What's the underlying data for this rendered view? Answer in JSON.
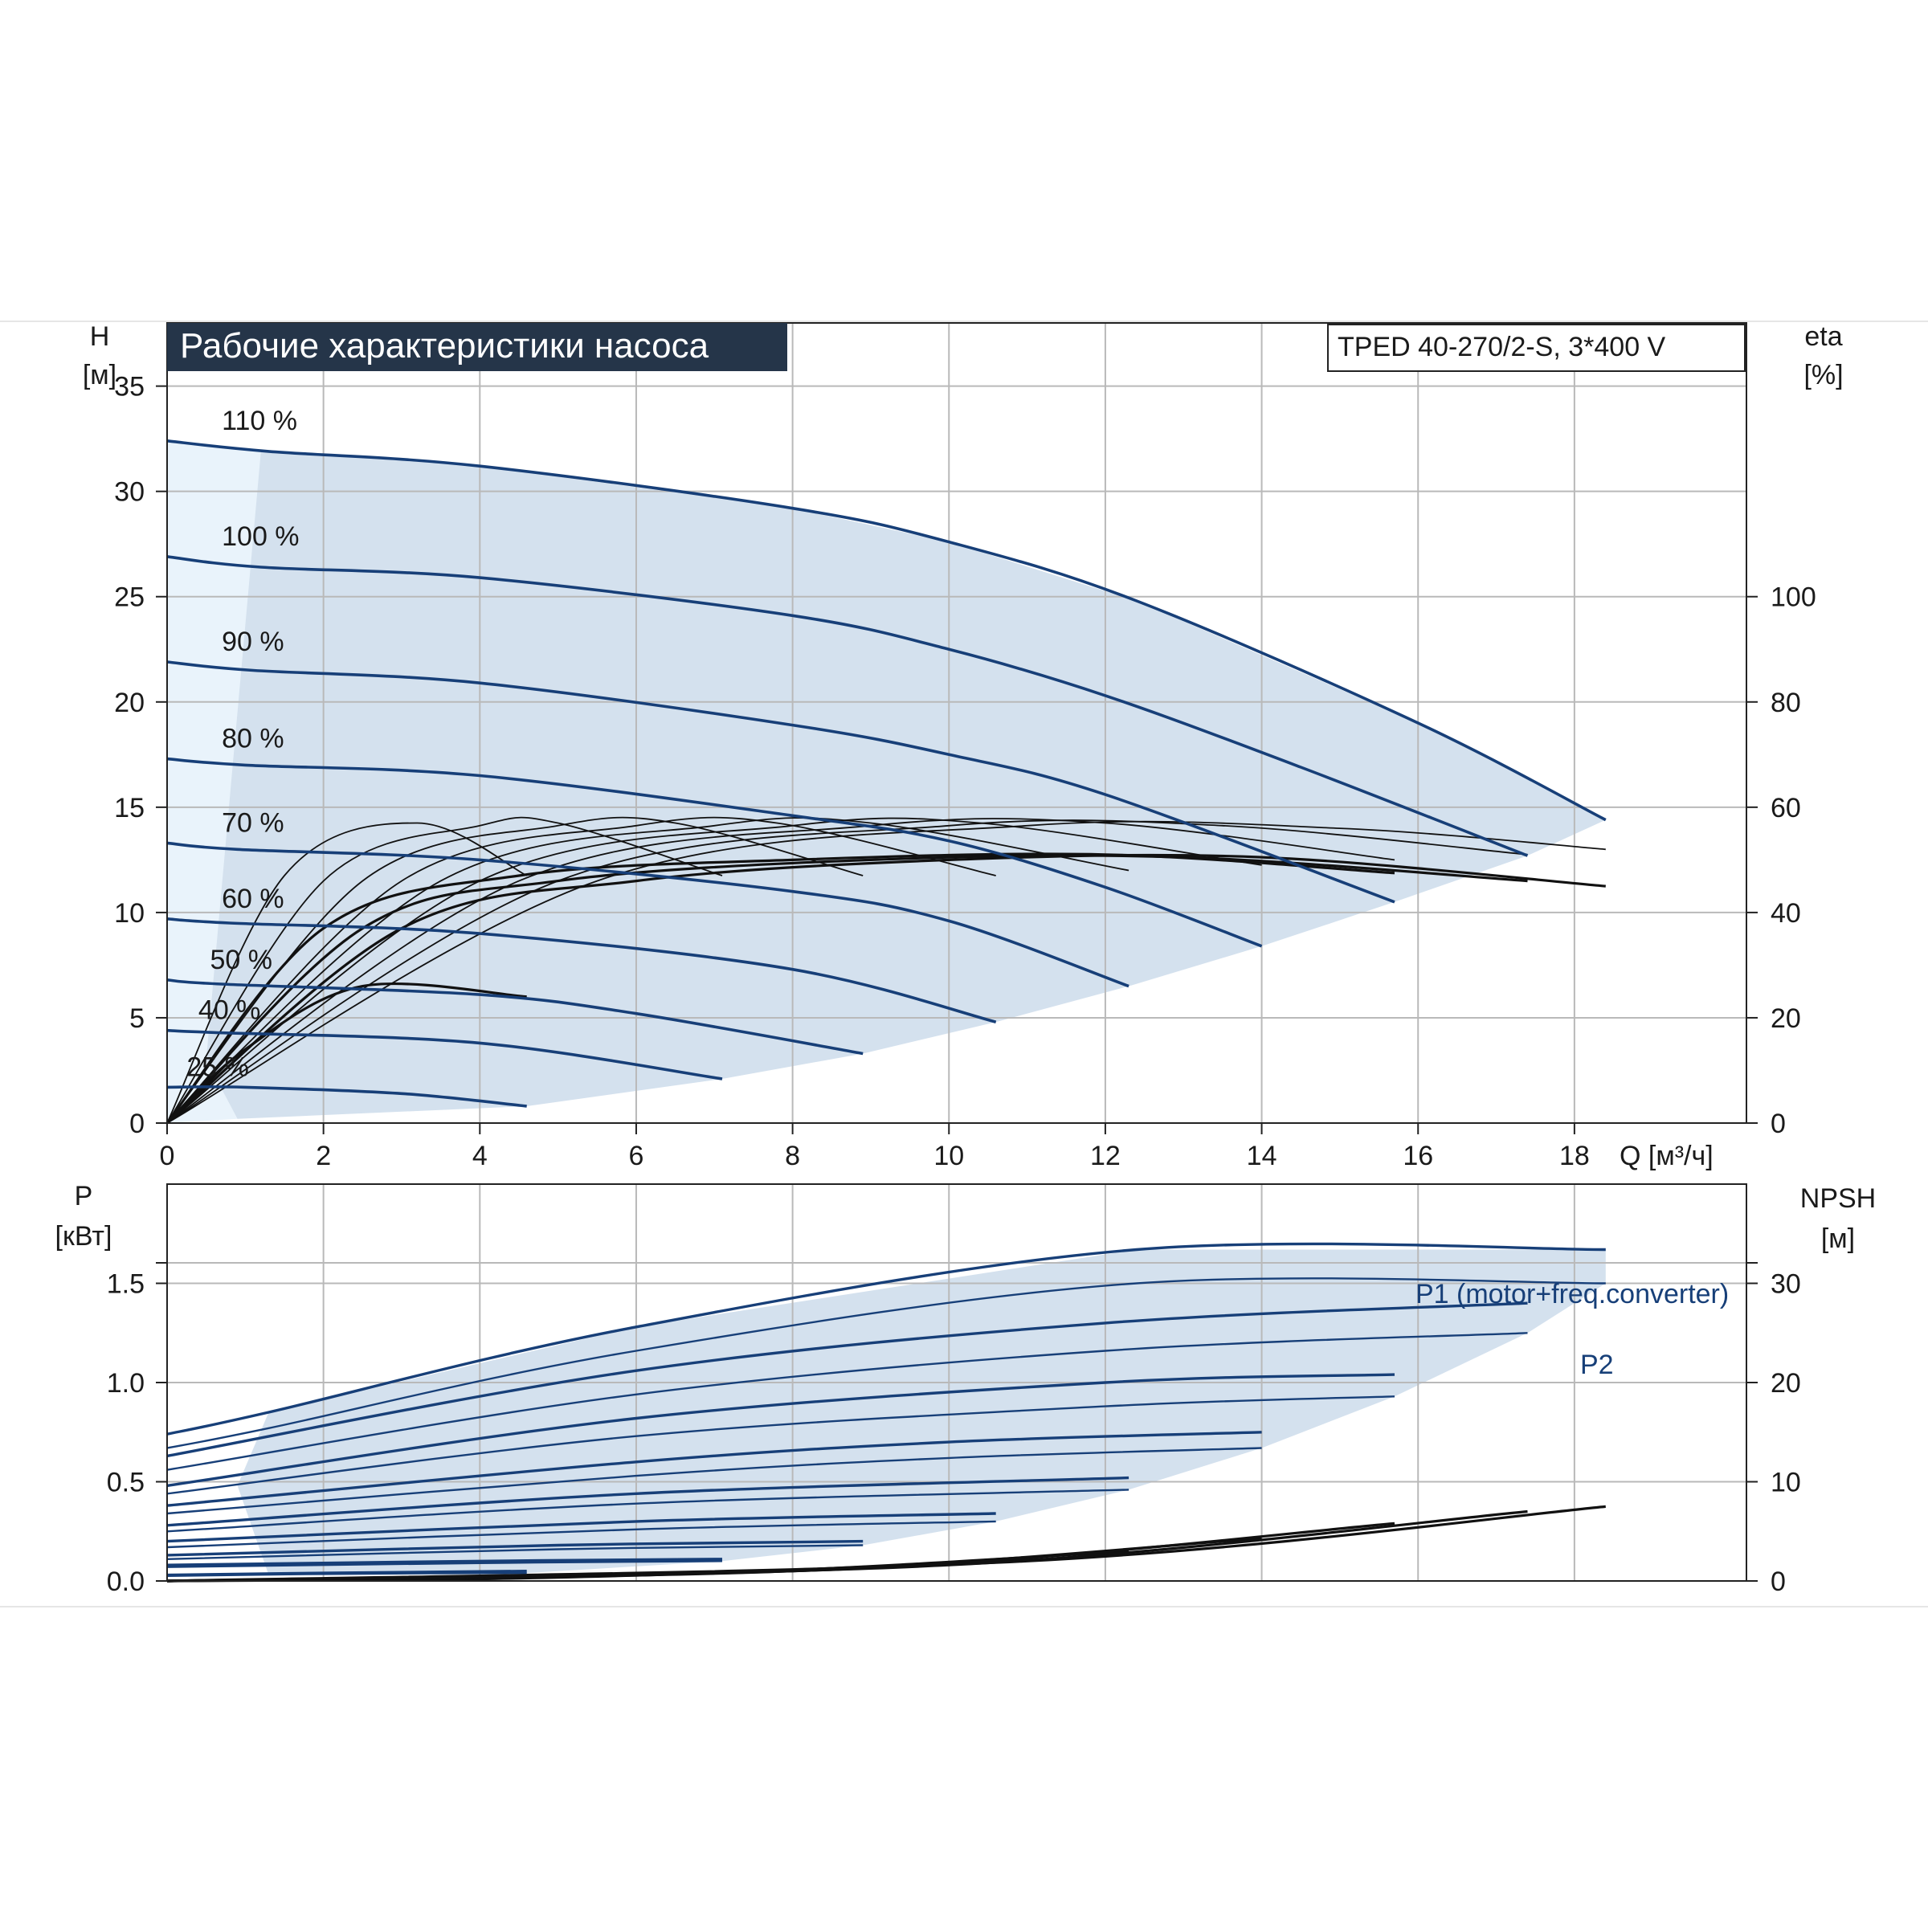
{
  "chart_data": [
    {
      "type": "line",
      "title": "Рабочие характеристики насоса",
      "model_label": "TPED 40-270/2-S, 3*400 V",
      "xlabel": "Q [м³/ч]",
      "ylabel_line1": "H",
      "ylabel_line2": "[м]",
      "y2label_line1": "eta",
      "y2label_line2": "[%]",
      "xlim": [
        0,
        20.2
      ],
      "ylim": [
        0,
        38
      ],
      "y2lim": [
        0,
        152
      ],
      "x_ticks": [
        0,
        2,
        4,
        6,
        8,
        10,
        12,
        14,
        16,
        18
      ],
      "y_ticks": [
        0,
        5,
        10,
        15,
        20,
        25,
        30,
        35
      ],
      "y2_ticks": [
        0,
        20,
        40,
        60,
        80,
        100
      ],
      "grid": true,
      "colors": {
        "head": "#173f78",
        "eta": "#111111",
        "envelope": "#d4e1ee",
        "envelope_light": "#e9f3fb",
        "title_bg": "#253549"
      },
      "head_curves": [
        {
          "label": "110 %",
          "points": [
            [
              0,
              32.4
            ],
            [
              1.3,
              31.9
            ],
            [
              4,
              31.2
            ],
            [
              8,
              29.2
            ],
            [
              10,
              27.6
            ],
            [
              12.4,
              24.8
            ],
            [
              16,
              19.0
            ],
            [
              18.4,
              14.4
            ]
          ]
        },
        {
          "label": "100 %",
          "points": [
            [
              0,
              26.9
            ],
            [
              1.2,
              26.4
            ],
            [
              4,
              25.9
            ],
            [
              8,
              24.1
            ],
            [
              10,
              22.5
            ],
            [
              12,
              20.3
            ],
            [
              14.5,
              16.9
            ],
            [
              17.4,
              12.7
            ]
          ]
        },
        {
          "label": "90 %",
          "points": [
            [
              0,
              21.9
            ],
            [
              1.1,
              21.5
            ],
            [
              4,
              20.9
            ],
            [
              8,
              18.9
            ],
            [
              10,
              17.5
            ],
            [
              12,
              15.6
            ],
            [
              15.7,
              10.5
            ]
          ]
        },
        {
          "label": "80 %",
          "points": [
            [
              0,
              17.3
            ],
            [
              1,
              17.0
            ],
            [
              4,
              16.5
            ],
            [
              8,
              14.6
            ],
            [
              10,
              13.4
            ],
            [
              12,
              11.2
            ],
            [
              14,
              8.4
            ]
          ]
        },
        {
          "label": "70 %",
          "points": [
            [
              0,
              13.3
            ],
            [
              0.9,
              13.0
            ],
            [
              4,
              12.5
            ],
            [
              8,
              11.0
            ],
            [
              10,
              9.6
            ],
            [
              12.3,
              6.5
            ]
          ]
        },
        {
          "label": "60 %",
          "points": [
            [
              0,
              9.7
            ],
            [
              0.8,
              9.5
            ],
            [
              4,
              9.0
            ],
            [
              8,
              7.3
            ],
            [
              10.6,
              4.8
            ]
          ]
        },
        {
          "label": "50 %",
          "points": [
            [
              0,
              6.8
            ],
            [
              0.7,
              6.6
            ],
            [
              4,
              6.1
            ],
            [
              6,
              5.2
            ],
            [
              8.9,
              3.3
            ]
          ]
        },
        {
          "label": "40 %",
          "points": [
            [
              0,
              4.4
            ],
            [
              0.6,
              4.3
            ],
            [
              4,
              3.8
            ],
            [
              7.1,
              2.1
            ]
          ]
        },
        {
          "label": "25 %",
          "points": [
            [
              0,
              1.7
            ],
            [
              1,
              1.7
            ],
            [
              3,
              1.4
            ],
            [
              4.6,
              0.8
            ]
          ]
        }
      ],
      "eta_curves": [
        [
          [
            0,
            0
          ],
          [
            1.5,
            47
          ],
          [
            3.2,
            57
          ],
          [
            4.6,
            47
          ]
        ],
        [
          [
            0,
            0
          ],
          [
            2,
            46
          ],
          [
            4,
            56.5
          ],
          [
            5,
            57
          ],
          [
            7.1,
            47
          ]
        ],
        [
          [
            0,
            0
          ],
          [
            2.5,
            46
          ],
          [
            5,
            56.5
          ],
          [
            6.5,
            57
          ],
          [
            8.9,
            47
          ]
        ],
        [
          [
            0,
            0
          ],
          [
            3,
            46
          ],
          [
            6,
            56.5
          ],
          [
            7.8,
            57
          ],
          [
            10.6,
            47
          ]
        ],
        [
          [
            0,
            0
          ],
          [
            3.5,
            46
          ],
          [
            7,
            56.5
          ],
          [
            9,
            57
          ],
          [
            12.3,
            48
          ]
        ],
        [
          [
            0,
            0
          ],
          [
            4,
            46
          ],
          [
            8,
            56.5
          ],
          [
            10.4,
            57
          ],
          [
            14,
            49
          ]
        ],
        [
          [
            0,
            0
          ],
          [
            4.5,
            46
          ],
          [
            9,
            56.5
          ],
          [
            12,
            57
          ],
          [
            15.7,
            50
          ]
        ],
        [
          [
            0,
            0
          ],
          [
            5,
            46
          ],
          [
            10,
            56.5
          ],
          [
            13.5,
            56.5
          ],
          [
            17.4,
            51
          ]
        ],
        [
          [
            0,
            0
          ],
          [
            5.5,
            46
          ],
          [
            11,
            56.5
          ],
          [
            15,
            56
          ],
          [
            18.4,
            52
          ]
        ],
        [
          [
            0,
            0
          ],
          [
            2,
            37
          ],
          [
            4.5,
            47
          ],
          [
            8,
            50
          ],
          [
            12,
            51
          ],
          [
            15.7,
            47.5
          ]
        ],
        [
          [
            0,
            0
          ],
          [
            2.5,
            37
          ],
          [
            5,
            46
          ],
          [
            9,
            50
          ],
          [
            13,
            50.5
          ],
          [
            17.4,
            46
          ]
        ],
        [
          [
            0,
            0
          ],
          [
            3,
            37
          ],
          [
            6,
            46
          ],
          [
            10,
            50
          ],
          [
            14,
            50.5
          ],
          [
            18.4,
            45
          ]
        ],
        [
          [
            0,
            0
          ],
          [
            1,
            14
          ],
          [
            2.5,
            26
          ],
          [
            4.6,
            24
          ]
        ]
      ]
    },
    {
      "type": "line",
      "ylabel_line1": "P",
      "ylabel_line2": "[кВт]",
      "y2label_line1": "NPSH",
      "y2label_line2": "[м]",
      "xlim": [
        0,
        20.2
      ],
      "ylim": [
        0,
        2.0
      ],
      "y2lim": [
        0,
        40
      ],
      "y_ticks": [
        0.0,
        0.5,
        1.0,
        1.5
      ],
      "y_tick_labels": [
        "0.0",
        "0.5",
        "1.0",
        "1.5"
      ],
      "y2_ticks": [
        0,
        10,
        20,
        30
      ],
      "p1_label": "P1 (motor+freq.converter)",
      "p2_label": "P2",
      "power_curves": [
        {
          "group": "P1",
          "points": [
            [
              0,
              0.74
            ],
            [
              1.3,
              0.85
            ],
            [
              6,
              1.28
            ],
            [
              12.4,
              1.67
            ],
            [
              18.4,
              1.67
            ]
          ]
        },
        {
          "group": "P2",
          "points": [
            [
              0,
              0.67
            ],
            [
              1.3,
              0.77
            ],
            [
              6,
              1.16
            ],
            [
              12.4,
              1.5
            ],
            [
              18.4,
              1.5
            ]
          ]
        },
        {
          "group": "P1",
          "points": [
            [
              0,
              0.63
            ],
            [
              6,
              1.06
            ],
            [
              12,
              1.3
            ],
            [
              17.4,
              1.4
            ]
          ]
        },
        {
          "group": "P2",
          "points": [
            [
              0,
              0.56
            ],
            [
              6,
              0.94
            ],
            [
              12,
              1.16
            ],
            [
              17.4,
              1.25
            ]
          ]
        },
        {
          "group": "P1",
          "points": [
            [
              0,
              0.48
            ],
            [
              6,
              0.82
            ],
            [
              12,
              1.0
            ],
            [
              15.7,
              1.04
            ]
          ]
        },
        {
          "group": "P2",
          "points": [
            [
              0,
              0.44
            ],
            [
              6,
              0.73
            ],
            [
              12,
              0.88
            ],
            [
              15.7,
              0.93
            ]
          ]
        },
        {
          "group": "P1",
          "points": [
            [
              0,
              0.38
            ],
            [
              6,
              0.6
            ],
            [
              10,
              0.7
            ],
            [
              14,
              0.75
            ]
          ]
        },
        {
          "group": "P2",
          "points": [
            [
              0,
              0.34
            ],
            [
              6,
              0.53
            ],
            [
              10,
              0.62
            ],
            [
              14,
              0.67
            ]
          ]
        },
        {
          "group": "P1",
          "points": [
            [
              0,
              0.28
            ],
            [
              6,
              0.44
            ],
            [
              12.3,
              0.52
            ]
          ]
        },
        {
          "group": "P2",
          "points": [
            [
              0,
              0.25
            ],
            [
              6,
              0.39
            ],
            [
              12.3,
              0.46
            ]
          ]
        },
        {
          "group": "P1",
          "points": [
            [
              0,
              0.2
            ],
            [
              6,
              0.3
            ],
            [
              10.6,
              0.34
            ]
          ]
        },
        {
          "group": "P2",
          "points": [
            [
              0,
              0.17
            ],
            [
              6,
              0.26
            ],
            [
              10.6,
              0.3
            ]
          ]
        },
        {
          "group": "P1",
          "points": [
            [
              0,
              0.13
            ],
            [
              5,
              0.18
            ],
            [
              8.9,
              0.2
            ]
          ]
        },
        {
          "group": "P2",
          "points": [
            [
              0,
              0.11
            ],
            [
              5,
              0.16
            ],
            [
              8.9,
              0.18
            ]
          ]
        },
        {
          "group": "P1",
          "points": [
            [
              0,
              0.08
            ],
            [
              4,
              0.1
            ],
            [
              7.1,
              0.11
            ]
          ]
        },
        {
          "group": "P2",
          "points": [
            [
              0,
              0.07
            ],
            [
              4,
              0.09
            ],
            [
              7.1,
              0.1
            ]
          ]
        },
        {
          "group": "P1",
          "points": [
            [
              0,
              0.03
            ],
            [
              2,
              0.04
            ],
            [
              4.6,
              0.05
            ]
          ]
        },
        {
          "group": "P2",
          "points": [
            [
              0,
              0.025
            ],
            [
              2,
              0.035
            ],
            [
              4.6,
              0.04
            ]
          ]
        }
      ],
      "npsh_curves": [
        [
          [
            0,
            0
          ],
          [
            4,
            0.2
          ],
          [
            7.1,
            0.8
          ]
        ],
        [
          [
            0,
            0
          ],
          [
            5,
            0.4
          ],
          [
            8.9,
            1.3
          ]
        ],
        [
          [
            0,
            0
          ],
          [
            6,
            0.6
          ],
          [
            10.6,
            2.0
          ]
        ],
        [
          [
            0,
            0
          ],
          [
            7,
            0.8
          ],
          [
            12.3,
            3.0
          ]
        ],
        [
          [
            0,
            0
          ],
          [
            8,
            1.0
          ],
          [
            14,
            4.3
          ]
        ],
        [
          [
            0,
            0
          ],
          [
            9,
            1.3
          ],
          [
            15.7,
            5.8
          ]
        ],
        [
          [
            0,
            0
          ],
          [
            10,
            1.6
          ],
          [
            17.4,
            7.0
          ]
        ],
        [
          [
            0,
            0
          ],
          [
            11,
            2.0
          ],
          [
            18.4,
            7.5
          ]
        ]
      ]
    }
  ]
}
